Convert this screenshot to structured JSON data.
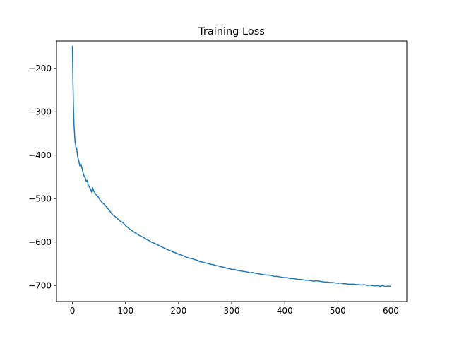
{
  "chart_data": {
    "type": "line",
    "title": "Training Loss",
    "xlabel": "",
    "ylabel": "",
    "xlim": [
      -30,
      630
    ],
    "ylim": [
      -737,
      -137
    ],
    "x_ticks": [
      0,
      100,
      200,
      300,
      400,
      500,
      600
    ],
    "y_ticks": [
      -700,
      -600,
      -500,
      -400,
      -300,
      -200
    ],
    "grid": false,
    "legend": "none",
    "series": [
      {
        "color": "#1f77b4",
        "x": [
          0,
          1,
          2,
          3,
          4,
          5,
          6,
          7,
          8,
          10,
          12,
          14,
          16,
          18,
          20,
          22,
          24,
          26,
          28,
          30,
          32,
          34,
          36,
          38,
          40,
          44,
          48,
          52,
          56,
          60,
          65,
          70,
          75,
          80,
          85,
          90,
          95,
          100,
          105,
          110,
          115,
          120,
          125,
          130,
          135,
          140,
          145,
          150,
          155,
          160,
          165,
          170,
          175,
          180,
          185,
          190,
          195,
          200,
          205,
          210,
          215,
          220,
          225,
          230,
          235,
          240,
          245,
          250,
          255,
          260,
          265,
          270,
          275,
          280,
          285,
          290,
          295,
          300,
          305,
          310,
          315,
          320,
          325,
          330,
          335,
          340,
          345,
          350,
          355,
          360,
          365,
          370,
          375,
          380,
          385,
          390,
          395,
          400,
          405,
          410,
          415,
          420,
          425,
          430,
          435,
          440,
          445,
          450,
          455,
          460,
          465,
          470,
          475,
          480,
          485,
          490,
          495,
          500,
          505,
          510,
          515,
          520,
          525,
          530,
          535,
          540,
          545,
          550,
          555,
          560,
          565,
          570,
          575,
          580,
          585,
          590,
          595,
          600
        ],
        "values": [
          -148,
          -232,
          -290,
          -330,
          -350,
          -370,
          -375,
          -388,
          -383,
          -405,
          -413,
          -425,
          -420,
          -430,
          -440,
          -448,
          -452,
          -460,
          -458,
          -470,
          -473,
          -478,
          -485,
          -474,
          -482,
          -490,
          -495,
          -503,
          -509,
          -513,
          -520,
          -528,
          -536,
          -541,
          -546,
          -552,
          -555,
          -562,
          -567,
          -572,
          -576,
          -580,
          -584,
          -587,
          -590,
          -594,
          -597,
          -601,
          -603,
          -606,
          -609,
          -612,
          -615,
          -618,
          -620,
          -623,
          -625,
          -628,
          -630,
          -632,
          -635,
          -637,
          -638,
          -640,
          -642,
          -645,
          -646,
          -648,
          -649,
          -651,
          -652,
          -654,
          -655,
          -657,
          -658,
          -660,
          -661,
          -663,
          -663,
          -665,
          -666,
          -667,
          -668,
          -669,
          -671,
          -670,
          -672,
          -673,
          -674,
          -675,
          -676,
          -676,
          -677,
          -679,
          -679,
          -680,
          -681,
          -682,
          -682,
          -684,
          -684,
          -685,
          -686,
          -686,
          -687,
          -688,
          -688,
          -689,
          -690,
          -689,
          -690,
          -691,
          -692,
          -692,
          -693,
          -693,
          -694,
          -695,
          -694,
          -696,
          -696,
          -697,
          -697,
          -697,
          -698,
          -698,
          -699,
          -698,
          -700,
          -699,
          -700,
          -701,
          -700,
          -702,
          -700,
          -703,
          -701,
          -702
        ]
      }
    ]
  }
}
